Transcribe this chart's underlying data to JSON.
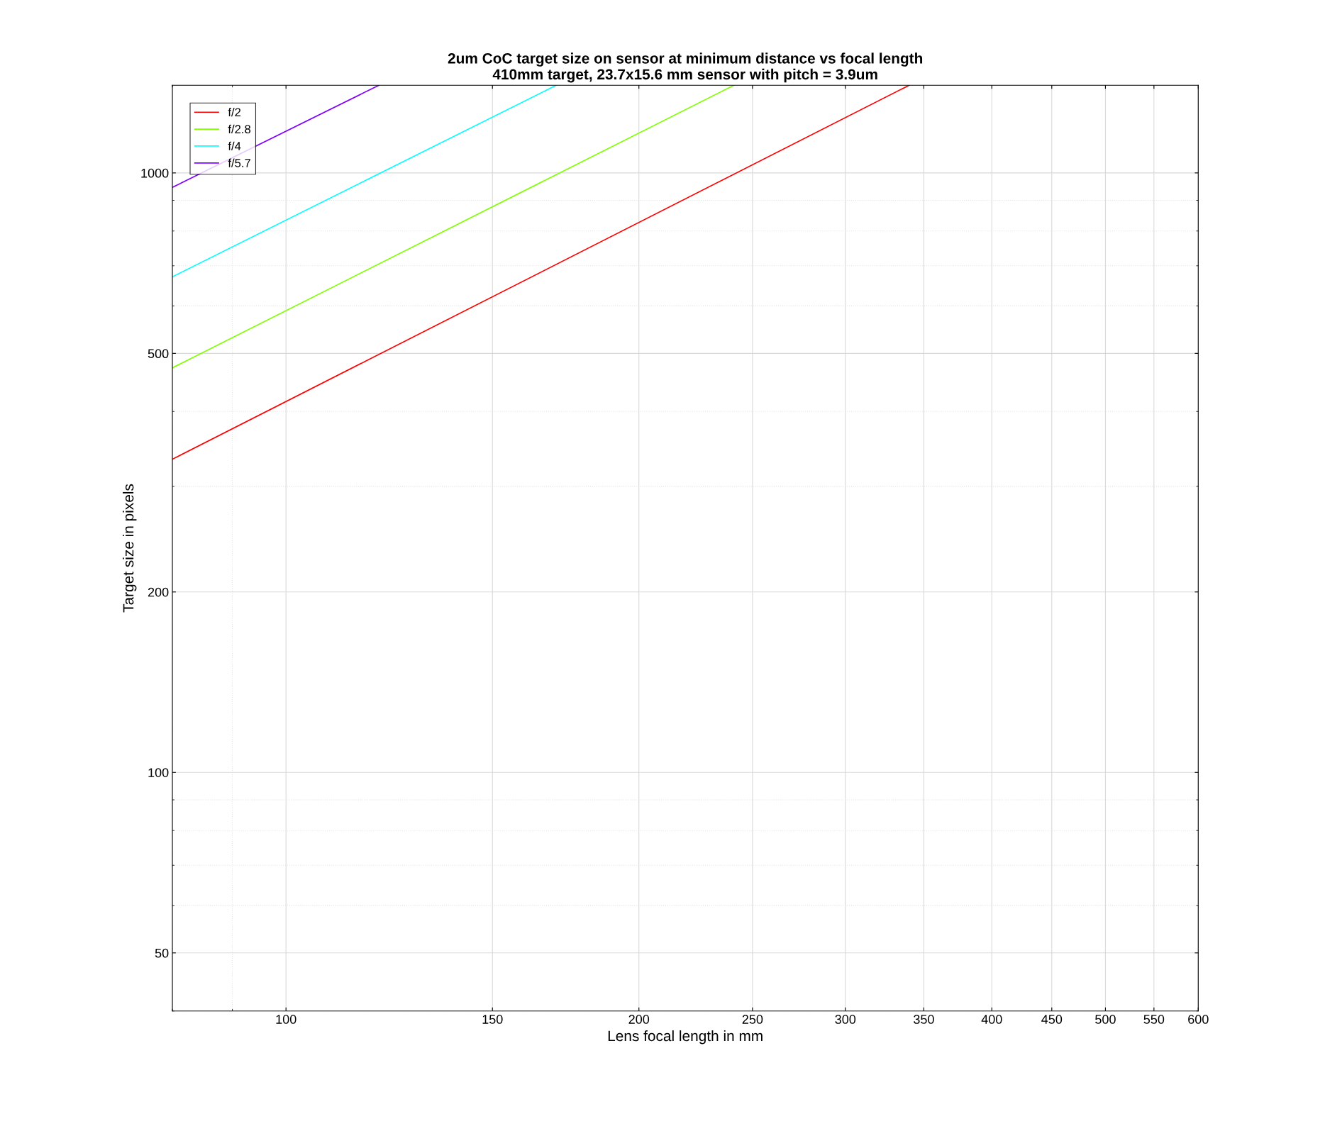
{
  "chart_data": {
    "type": "line",
    "title": "2um CoC target size on sensor at minimum distance vs focal length\n410mm target, 23.7x15.6 mm sensor with pitch = 3.9um",
    "xlabel": "Lens focal length in mm",
    "ylabel": "Target size in pixels",
    "log": "xy",
    "xlim": [
      80,
      600
    ],
    "ylim": [
      40,
      1400
    ],
    "xticks": [
      100,
      150,
      200,
      250,
      300,
      350,
      400,
      450,
      500,
      550,
      600
    ],
    "yticks": [
      50,
      100,
      200,
      500,
      1000
    ],
    "grid": true,
    "legend": "top left",
    "marker": "none",
    "line_style": "solid",
    "series": [
      {
        "name": "f/2",
        "color": "#ff0000",
        "x": [
          80,
          340
        ],
        "values": [
          333,
          1400
        ]
      },
      {
        "name": "f/2.8",
        "color": "#80ff00",
        "x": [
          80,
          241
        ],
        "values": [
          473,
          1400
        ]
      },
      {
        "name": "f/4",
        "color": "#00ffff",
        "x": [
          80,
          170
        ],
        "values": [
          671,
          1400
        ]
      },
      {
        "name": "f/5.7",
        "color": "#8000ff",
        "x": [
          80,
          120
        ],
        "values": [
          946,
          1400
        ]
      }
    ]
  }
}
